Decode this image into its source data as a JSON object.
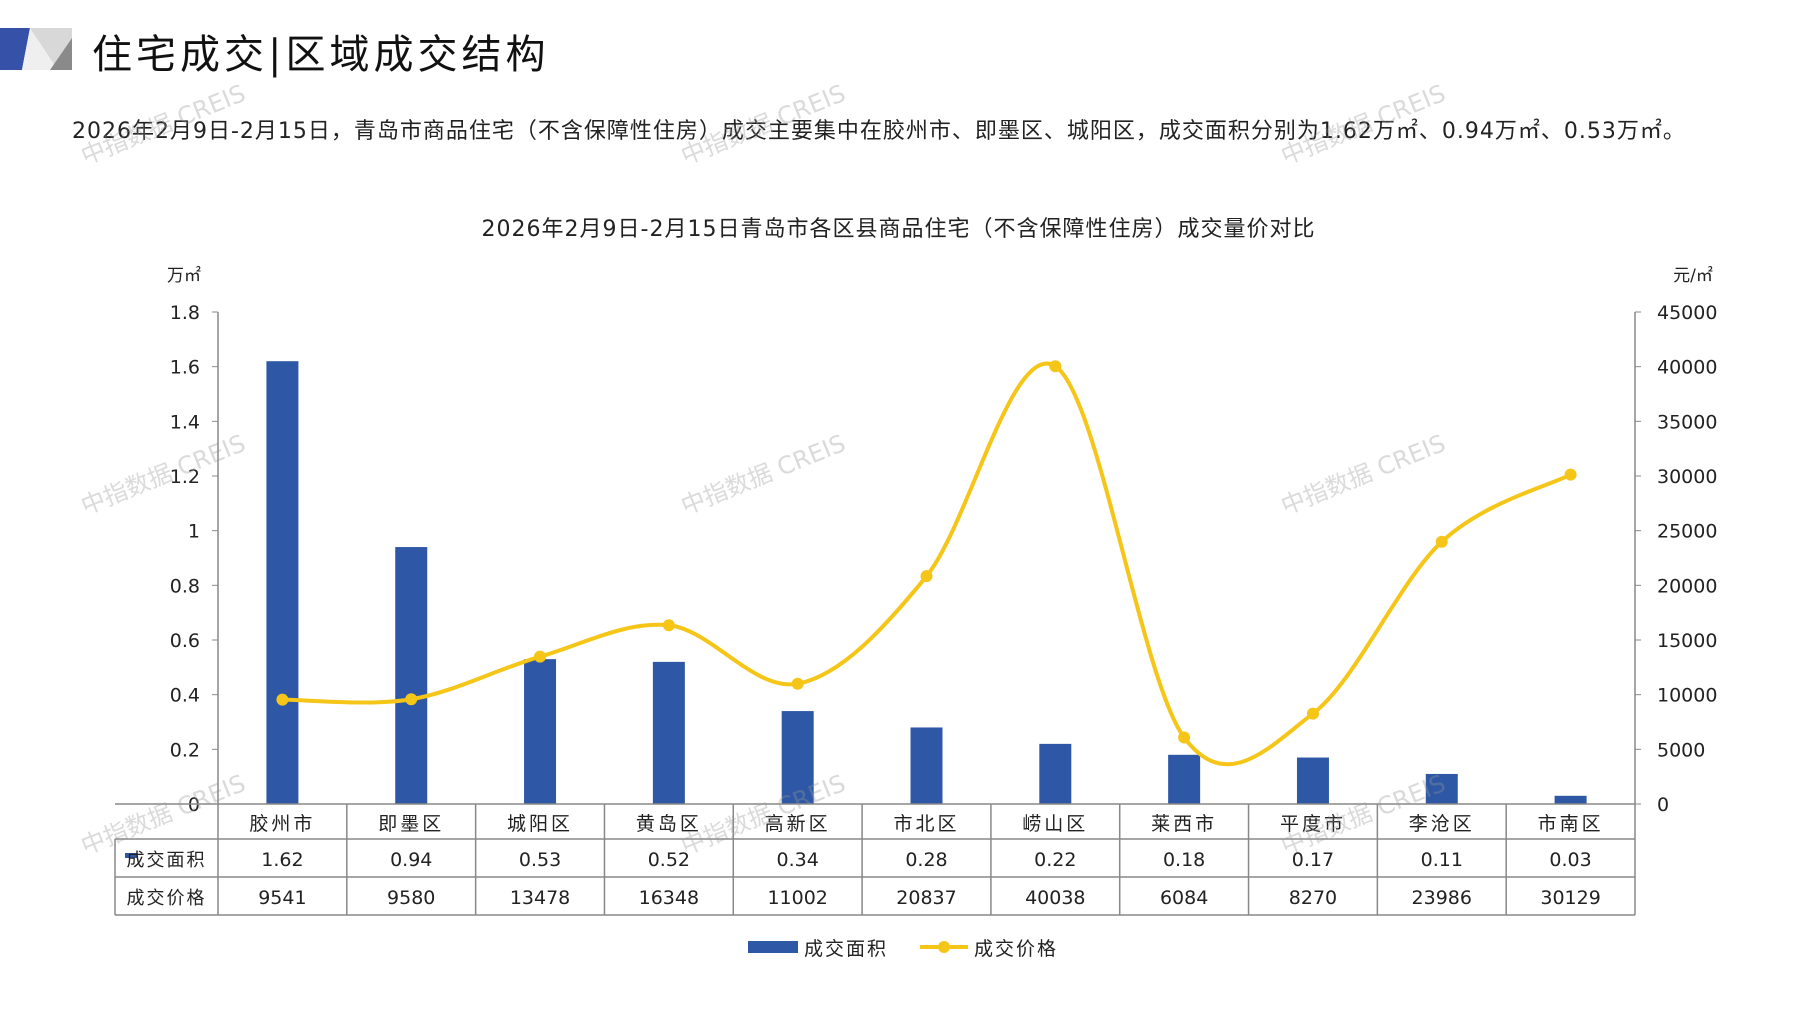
{
  "header": {
    "title": "住宅成交|区域成交结构",
    "paragraph": "2026年2月9日-2月15日，青岛市商品住宅（不含保障性住房）成交主要集中在胶州市、即墨区、城阳区，成交面积分别为1.62万㎡、0.94万㎡、0.53万㎡。"
  },
  "watermark": "中指数据 CREIS",
  "colors": {
    "bar": "#2E58A6",
    "line": "#F5C518",
    "axis": "#888888"
  },
  "chart_data": {
    "type": "bar",
    "title": "2026年2月9日-2月15日青岛市各区县商品住宅（不含保障性住房）成交量价对比",
    "ylabel": "万㎡",
    "y2label": "元/㎡",
    "ylim": [
      0,
      1.8
    ],
    "y2lim": [
      0,
      45000
    ],
    "yticks": [
      "0",
      "0.2",
      "0.4",
      "0.6",
      "0.8",
      "1",
      "1.2",
      "1.4",
      "1.6",
      "1.8"
    ],
    "y2ticks": [
      "0",
      "5000",
      "10000",
      "15000",
      "20000",
      "25000",
      "30000",
      "35000",
      "40000",
      "45000"
    ],
    "categories": [
      "胶州市",
      "即墨区",
      "城阳区",
      "黄岛区",
      "高新区",
      "市北区",
      "崂山区",
      "莱西市",
      "平度市",
      "李沧区",
      "市南区"
    ],
    "series": [
      {
        "name": "成交面积",
        "type": "bar",
        "axis": "left",
        "values": [
          1.62,
          0.94,
          0.53,
          0.52,
          0.34,
          0.28,
          0.22,
          0.18,
          0.17,
          0.11,
          0.03
        ],
        "labels": [
          "1.62",
          "0.94",
          "0.53",
          "0.52",
          "0.34",
          "0.28",
          "0.22",
          "0.18",
          "0.17",
          "0.11",
          "0.03"
        ]
      },
      {
        "name": "成交价格",
        "type": "line",
        "axis": "right",
        "values": [
          9541,
          9580,
          13478,
          16348,
          11002,
          20837,
          40038,
          6084,
          8270,
          23986,
          30129
        ],
        "labels": [
          "9541",
          "9580",
          "13478",
          "16348",
          "11002",
          "20837",
          "40038",
          "6084",
          "8270",
          "23986",
          "30129"
        ]
      }
    ],
    "legend": "bottom"
  }
}
